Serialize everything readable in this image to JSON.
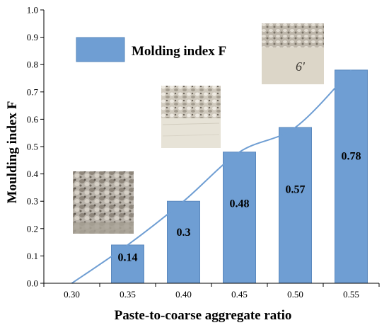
{
  "chart_data": {
    "type": "bar",
    "title": "",
    "xlabel": "Paste-to-coarse aggregate ratio",
    "ylabel": "Moulding index F",
    "categories": [
      "0.30",
      "0.35",
      "0.40",
      "0.45",
      "0.50",
      "0.55"
    ],
    "series": [
      {
        "name": "Molding index F",
        "values": [
          0,
          0.14,
          0.3,
          0.48,
          0.57,
          0.78
        ],
        "data_labels": [
          "",
          "0.14",
          "0.3",
          "0.48",
          "0.57",
          "0.78"
        ]
      }
    ],
    "trend_line_values": [
      0,
      0.14,
      0.3,
      0.48,
      0.57,
      0.78
    ],
    "ylim": [
      0,
      1.0
    ],
    "yticks": [
      "0.0",
      "0.1",
      "0.2",
      "0.3",
      "0.4",
      "0.5",
      "0.6",
      "0.7",
      "0.8",
      "0.9",
      "1.0"
    ],
    "grid": false,
    "legend_position": "top-left",
    "colors": {
      "bar": "#6f9ed3",
      "bar_stroke": "#5a88bd",
      "line": "#6f9ed3",
      "axis": "#000000"
    },
    "photos": [
      {
        "category": "0.35",
        "name": "specimen-photo-low",
        "label": ""
      },
      {
        "category": "0.45",
        "name": "specimen-photo-mid",
        "label": ""
      },
      {
        "category": "0.55",
        "name": "specimen-photo-high",
        "label": "6'"
      }
    ]
  }
}
